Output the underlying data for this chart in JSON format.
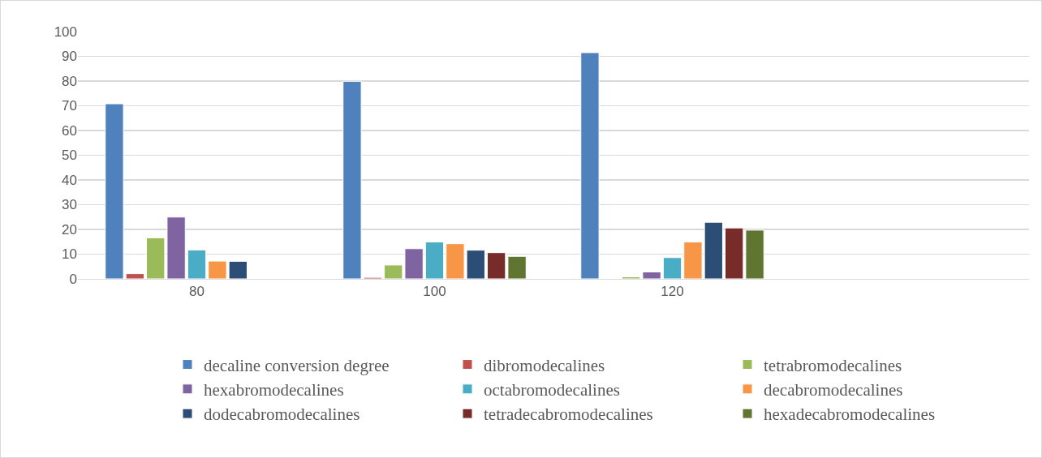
{
  "chart_data": {
    "type": "bar",
    "categories": [
      "80",
      "100",
      "120",
      null
    ],
    "series": [
      {
        "name": "decaline conversion degree",
        "color": "#4f81bd",
        "values": [
          70.8,
          79.9,
          91.5,
          null
        ]
      },
      {
        "name": "dibromodecalines",
        "color": "#c0504d",
        "values": [
          2.1,
          0.6,
          null,
          null
        ]
      },
      {
        "name": "tetrabromodecalines",
        "color": "#9bbb59",
        "values": [
          16.6,
          5.6,
          0.8,
          null
        ]
      },
      {
        "name": "hexabromodecalines",
        "color": "#8064a2",
        "values": [
          25.0,
          12.2,
          2.8,
          null
        ]
      },
      {
        "name": "octabromodecalines",
        "color": "#4bacc6",
        "values": [
          11.7,
          14.9,
          8.6,
          null
        ]
      },
      {
        "name": "decabromodecalines",
        "color": "#f79646",
        "values": [
          7.2,
          14.2,
          14.9,
          null
        ]
      },
      {
        "name": "dodecabromodecalines",
        "color": "#2c4d75",
        "values": [
          7.1,
          11.6,
          22.9,
          null
        ]
      },
      {
        "name": "tetradecabromodecalines",
        "color": "#772c2a",
        "values": [
          null,
          10.6,
          20.6,
          null
        ]
      },
      {
        "name": "hexadecabromodecalines",
        "color": "#5f7530",
        "values": [
          null,
          9.1,
          19.7,
          null
        ]
      }
    ],
    "ylim": [
      0,
      100
    ],
    "yticks": [
      0,
      10,
      20,
      30,
      40,
      50,
      60,
      70,
      80,
      90,
      100
    ],
    "grid": "y",
    "legend": "bottom"
  }
}
